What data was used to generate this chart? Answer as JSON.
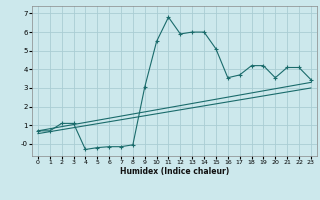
{
  "xlabel": "Humidex (Indice chaleur)",
  "background_color": "#cce8ec",
  "grid_color": "#aacdd4",
  "line_color": "#1a6b6b",
  "xlim": [
    -0.5,
    23.5
  ],
  "ylim": [
    -0.65,
    7.4
  ],
  "yticks": [
    7,
    6,
    5,
    4,
    3,
    2,
    1,
    0
  ],
  "ytick_labels": [
    "7",
    "6",
    "5",
    "4",
    "3",
    "2",
    "1",
    "-0"
  ],
  "xticks": [
    0,
    1,
    2,
    3,
    4,
    5,
    6,
    7,
    8,
    9,
    10,
    11,
    12,
    13,
    14,
    15,
    16,
    17,
    18,
    19,
    20,
    21,
    22,
    23
  ],
  "curve1_x": [
    0,
    1,
    2,
    3,
    4,
    5,
    6,
    7,
    8,
    9,
    10,
    11,
    12,
    13,
    14,
    15,
    16,
    17,
    18,
    19,
    20,
    21,
    22,
    23
  ],
  "curve1_y": [
    0.7,
    0.7,
    1.1,
    1.1,
    -0.3,
    -0.2,
    -0.15,
    -0.15,
    -0.05,
    3.05,
    5.5,
    6.8,
    5.9,
    6.0,
    6.0,
    5.1,
    3.55,
    3.7,
    4.2,
    4.2,
    3.55,
    4.1,
    4.1,
    3.45
  ],
  "line1_x": [
    0,
    23
  ],
  "line1_y": [
    0.7,
    3.3
  ],
  "line2_x": [
    0,
    23
  ],
  "line2_y": [
    0.55,
    3.0
  ]
}
